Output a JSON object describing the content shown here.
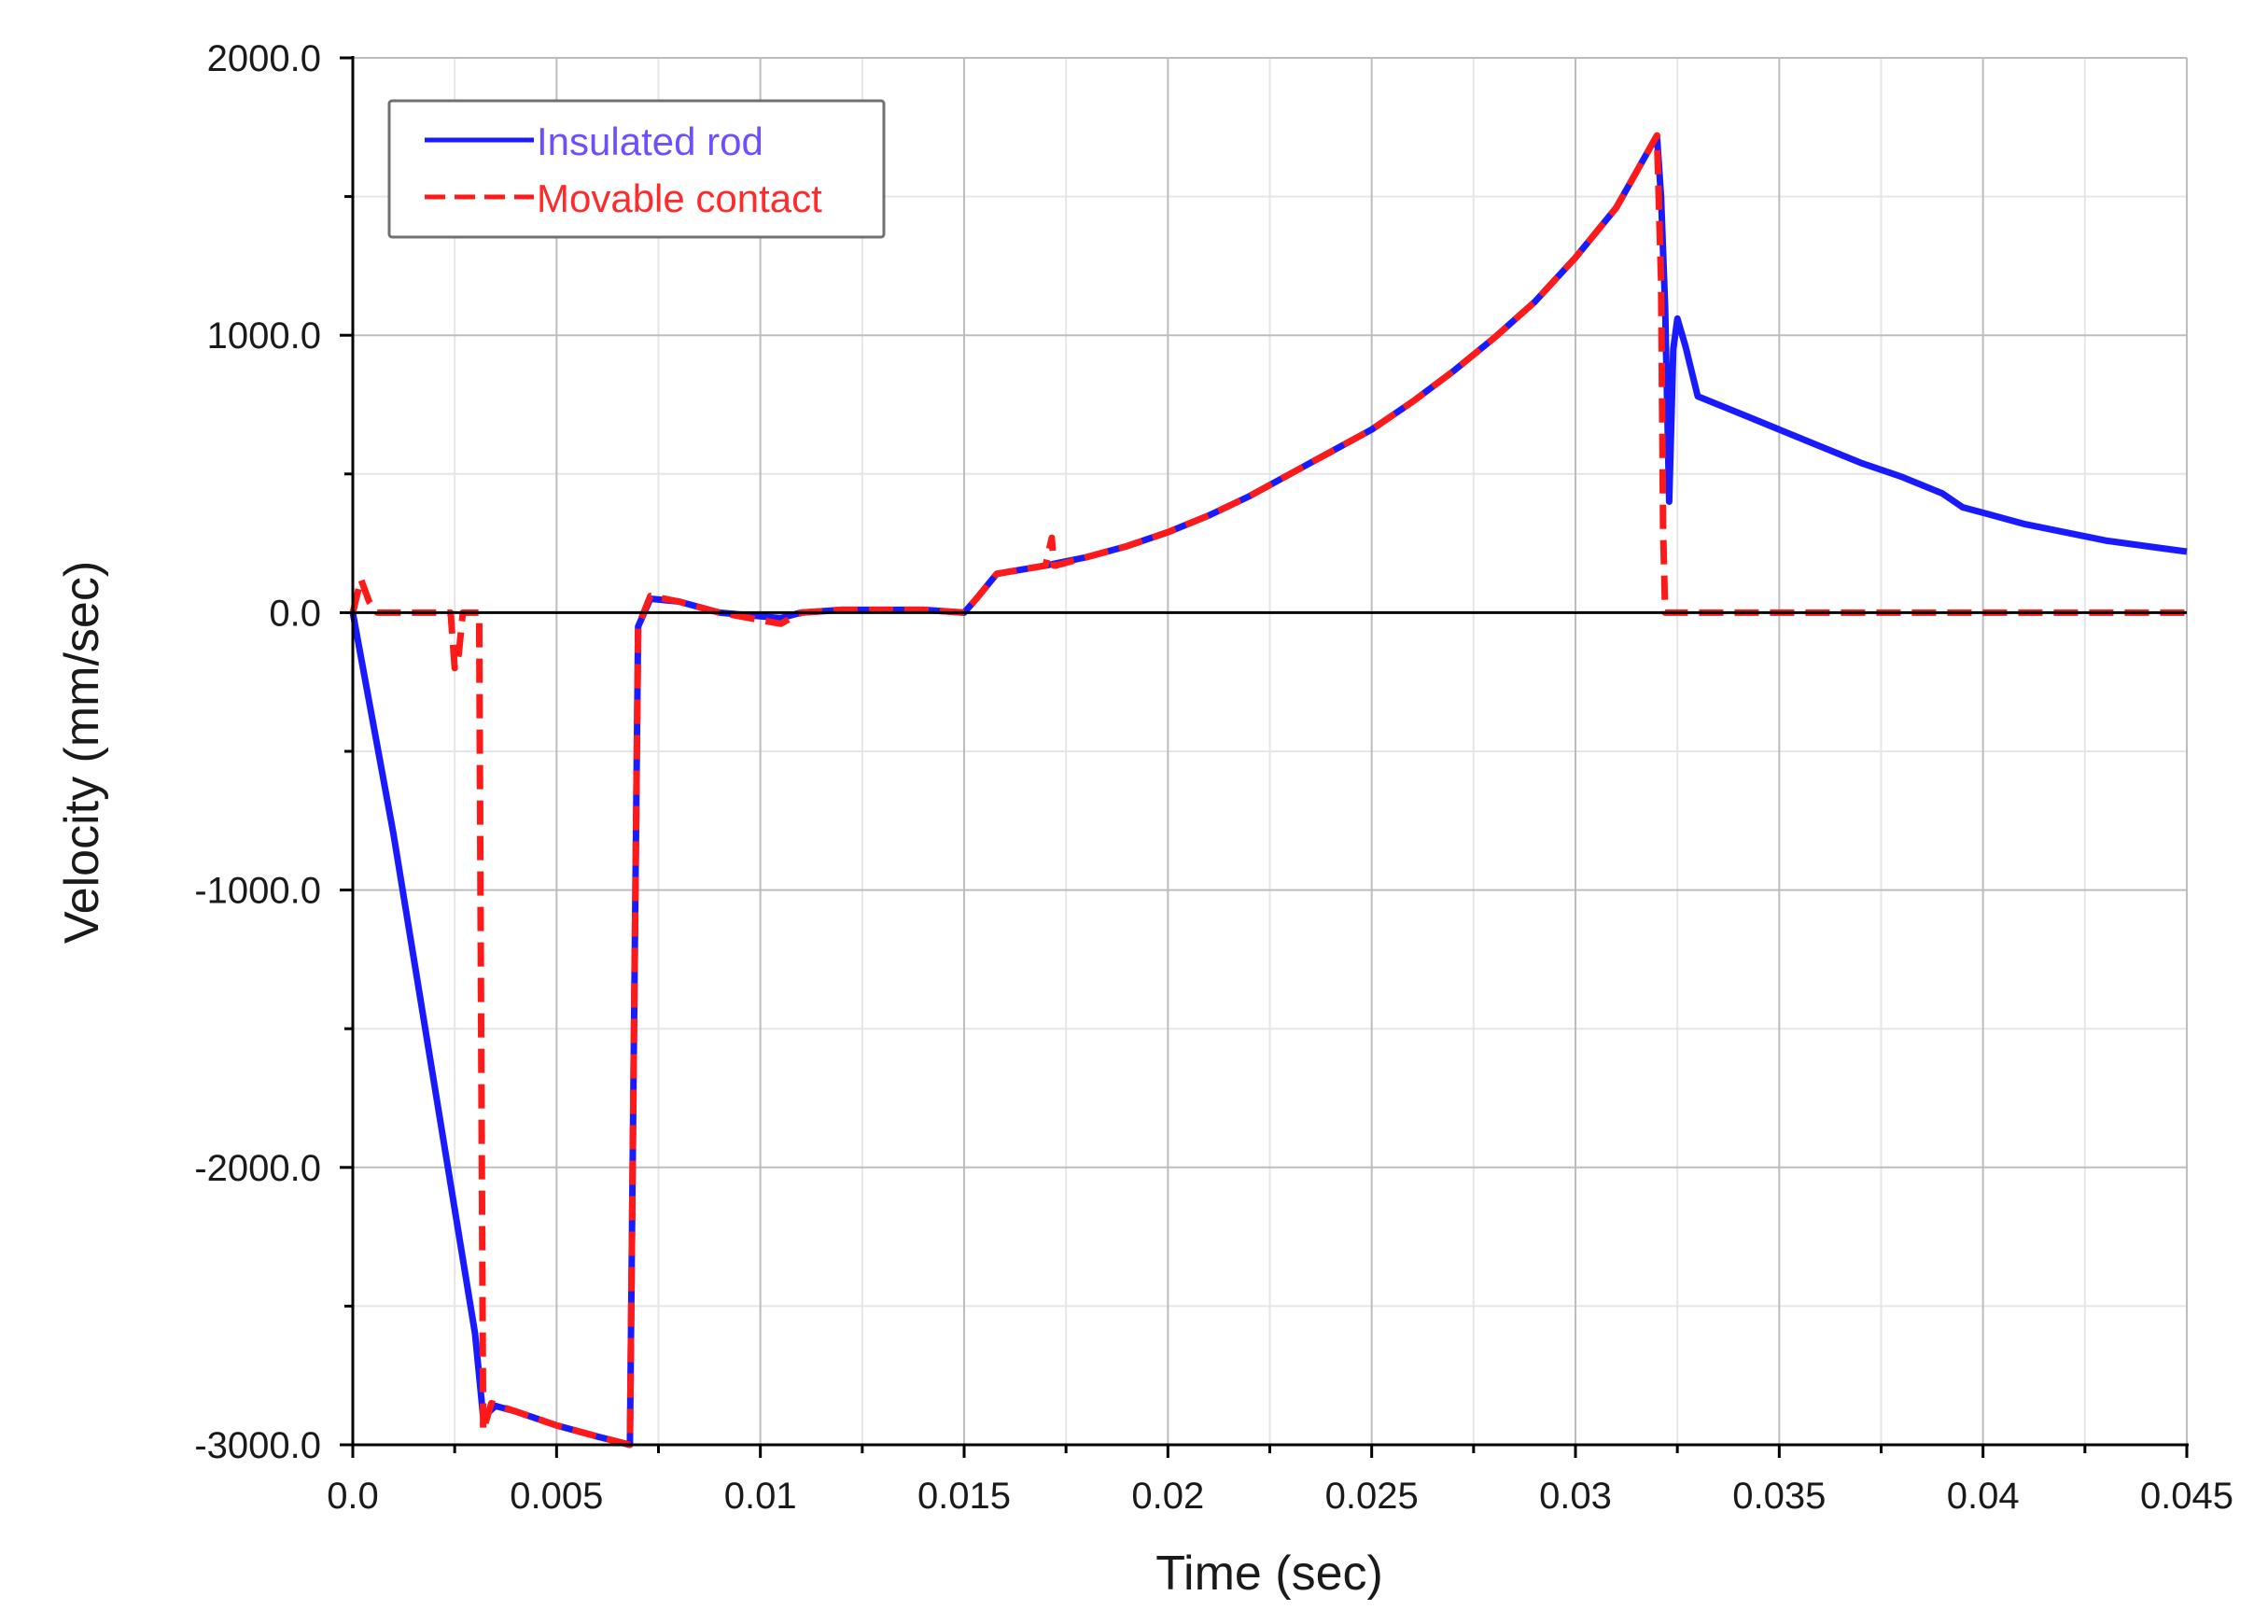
{
  "chart_data": {
    "type": "line",
    "title": "",
    "xlabel": "Time (sec)",
    "ylabel": "Velocity (mm/sec)",
    "xlim": [
      0,
      0.045
    ],
    "ylim": [
      -3000,
      2000
    ],
    "xticks": [
      0,
      0.005,
      0.01,
      0.015,
      0.02,
      0.025,
      0.03,
      0.035,
      0.04,
      0.045
    ],
    "xtick_labels": [
      "0.0",
      "0.005",
      "0.01",
      "0.015",
      "0.02",
      "0.025",
      "0.03",
      "0.035",
      "0.04",
      "0.045"
    ],
    "yticks": [
      2000,
      1000,
      0,
      -1000,
      -2000,
      -3000
    ],
    "ytick_labels": [
      "2000.0",
      "1000.0",
      "0.0",
      "-1000.0",
      "-2000.0",
      "-3000.0"
    ],
    "grid": true,
    "legend_position": "top-left",
    "series": [
      {
        "name": "Insulated rod",
        "color": "#1a1aff",
        "style": "solid",
        "x": [
          0,
          0.001,
          0.002,
          0.003,
          0.0032,
          0.0035,
          0.004,
          0.005,
          0.006,
          0.0068,
          0.0069,
          0.007,
          0.0073,
          0.008,
          0.009,
          0.0105,
          0.011,
          0.012,
          0.014,
          0.015,
          0.0153,
          0.0158,
          0.017,
          0.018,
          0.019,
          0.02,
          0.021,
          0.022,
          0.023,
          0.024,
          0.025,
          0.026,
          0.027,
          0.028,
          0.029,
          0.03,
          0.031,
          0.032,
          0.0321,
          0.0322,
          0.0323,
          0.0324,
          0.0325,
          0.0327,
          0.033,
          0.034,
          0.035,
          0.036,
          0.037,
          0.038,
          0.039,
          0.0395,
          0.04,
          0.041,
          0.042,
          0.043,
          0.044,
          0.045
        ],
        "y": [
          0,
          -800,
          -1700,
          -2600,
          -2900,
          -2860,
          -2880,
          -2930,
          -2970,
          -3000,
          -1500,
          -50,
          50,
          40,
          0,
          -20,
          0,
          10,
          10,
          0,
          50,
          140,
          170,
          200,
          240,
          290,
          350,
          420,
          500,
          580,
          660,
          760,
          870,
          990,
          1120,
          1280,
          1460,
          1720,
          1500,
          1100,
          400,
          950,
          1060,
          960,
          780,
          720,
          660,
          600,
          540,
          490,
          430,
          380,
          360,
          320,
          290,
          260,
          240,
          220
        ]
      },
      {
        "name": "Movable contact",
        "color": "#ff1a1a",
        "style": "dashed",
        "x": [
          0,
          0.0002,
          0.0004,
          0.0006,
          0.001,
          0.0024,
          0.0025,
          0.0026,
          0.0027,
          0.0031,
          0.00315,
          0.0032,
          0.0034,
          0.0036,
          0.004,
          0.005,
          0.006,
          0.0068,
          0.0069,
          0.007,
          0.0073,
          0.008,
          0.009,
          0.0105,
          0.011,
          0.012,
          0.014,
          0.015,
          0.0153,
          0.0158,
          0.017,
          0.01715,
          0.0172,
          0.01725,
          0.018,
          0.019,
          0.02,
          0.021,
          0.022,
          0.023,
          0.024,
          0.025,
          0.026,
          0.027,
          0.028,
          0.029,
          0.03,
          0.031,
          0.032,
          0.0321,
          0.03215,
          0.0322,
          0.033,
          0.035,
          0.04,
          0.045
        ],
        "y": [
          0,
          120,
          40,
          0,
          0,
          0,
          -200,
          -150,
          0,
          0,
          -1500,
          -2950,
          -2850,
          -2860,
          -2880,
          -2930,
          -2970,
          -3000,
          -1500,
          -50,
          60,
          40,
          0,
          -40,
          0,
          10,
          10,
          0,
          50,
          140,
          170,
          270,
          170,
          170,
          200,
          240,
          290,
          350,
          420,
          500,
          580,
          660,
          760,
          870,
          990,
          1120,
          1280,
          1460,
          1720,
          1200,
          300,
          0,
          0,
          0,
          0,
          0
        ]
      }
    ]
  }
}
